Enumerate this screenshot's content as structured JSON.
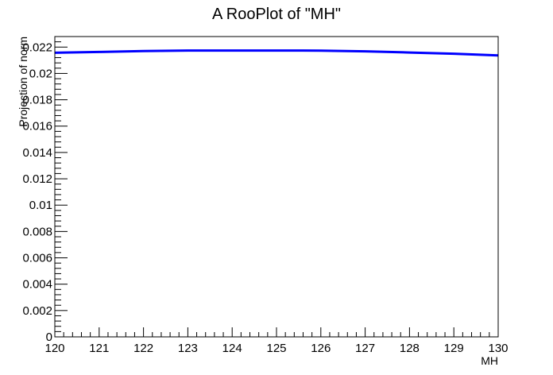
{
  "chart_data": {
    "type": "line",
    "title": "A RooPlot of \"MH\"",
    "xlabel": "MH",
    "ylabel": "Projection of norm",
    "xlim": [
      120,
      130
    ],
    "ylim": [
      0,
      0.0228
    ],
    "x_ticks": [
      120,
      121,
      122,
      123,
      124,
      125,
      126,
      127,
      128,
      129,
      130
    ],
    "x_tick_labels": [
      "120",
      "121",
      "122",
      "123",
      "124",
      "125",
      "126",
      "127",
      "128",
      "129",
      "130"
    ],
    "y_ticks": [
      0,
      0.002,
      0.004,
      0.006,
      0.008,
      0.01,
      0.012,
      0.014,
      0.016,
      0.018,
      0.02,
      0.022
    ],
    "y_tick_labels": [
      "0",
      "0.002",
      "0.004",
      "0.006",
      "0.008",
      "0.01",
      "0.012",
      "0.014",
      "0.016",
      "0.018",
      "0.02",
      "0.022"
    ],
    "grid": false,
    "series": [
      {
        "color": "#0000ff",
        "x": [
          120,
          121,
          122,
          123,
          124,
          125,
          126,
          127,
          128,
          129,
          130
        ],
        "y": [
          0.02157,
          0.02163,
          0.0217,
          0.02174,
          0.02174,
          0.02174,
          0.02173,
          0.02168,
          0.02159,
          0.0215,
          0.02137
        ]
      }
    ]
  }
}
